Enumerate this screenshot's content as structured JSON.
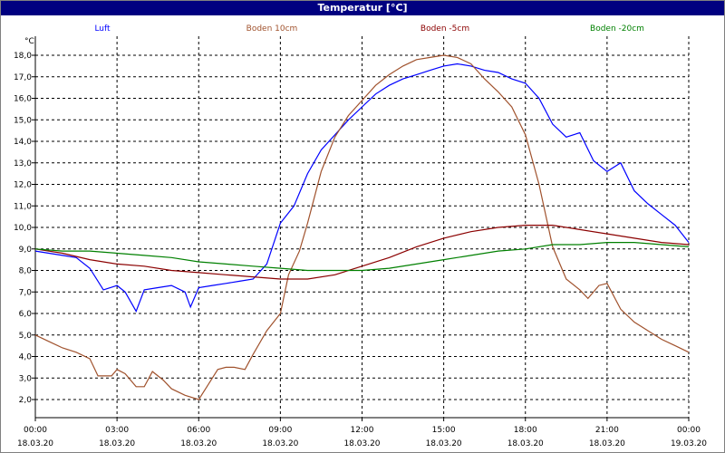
{
  "window": {
    "title": "Temperatur [°C]"
  },
  "chart_data": {
    "type": "line",
    "title": "Temperatur [°C]",
    "ylabel": "°C",
    "xlabel": "",
    "ylim": [
      1.0,
      18.5
    ],
    "xlim": [
      0,
      24
    ],
    "grid": true,
    "legend_position": "top",
    "yticks": [
      2,
      3,
      4,
      5,
      6,
      7,
      8,
      9,
      10,
      11,
      12,
      13,
      14,
      15,
      16,
      17,
      18
    ],
    "ytick_labels": [
      "2,0",
      "3,0",
      "4,0",
      "5,0",
      "6,0",
      "7,0",
      "8,0",
      "9,0",
      "10,0",
      "11,0",
      "12,0",
      "13,0",
      "14,0",
      "15,0",
      "16,0",
      "17,0",
      "18,0"
    ],
    "xticks": [
      0,
      3,
      6,
      9,
      12,
      15,
      18,
      21,
      24
    ],
    "xtick_times": [
      "00:00",
      "03:00",
      "06:00",
      "09:00",
      "12:00",
      "15:00",
      "18:00",
      "21:00",
      "00:00"
    ],
    "xtick_dates": [
      "18.03.20",
      "18.03.20",
      "18.03.20",
      "18.03.20",
      "18.03.20",
      "18.03.20",
      "18.03.20",
      "18.03.20",
      "19.03.20"
    ],
    "series": [
      {
        "name": "Luft",
        "color": "#0000ff",
        "x": [
          0,
          0.5,
          1,
          1.5,
          2,
          2.5,
          3,
          3.3,
          3.7,
          4,
          4.5,
          5,
          5.5,
          5.7,
          6,
          6.5,
          7,
          7.5,
          8,
          8.5,
          9,
          9.5,
          10,
          10.5,
          11,
          11.5,
          12,
          12.5,
          13,
          13.5,
          14,
          14.5,
          15,
          15.5,
          16,
          16.5,
          17,
          17.5,
          18,
          18.5,
          19,
          19.5,
          20,
          20.5,
          21,
          21.5,
          22,
          22.5,
          23,
          23.5,
          24
        ],
        "y": [
          8.9,
          8.8,
          8.7,
          8.6,
          8.1,
          7.1,
          7.3,
          7.0,
          6.1,
          7.1,
          7.2,
          7.3,
          7.0,
          6.3,
          7.2,
          7.3,
          7.4,
          7.5,
          7.6,
          8.3,
          10.2,
          11.0,
          12.5,
          13.6,
          14.3,
          15.0,
          15.6,
          16.2,
          16.6,
          16.9,
          17.1,
          17.3,
          17.5,
          17.6,
          17.5,
          17.3,
          17.2,
          16.9,
          16.7,
          16.0,
          14.8,
          14.2,
          14.4,
          13.1,
          12.6,
          13.0,
          11.7,
          11.1,
          10.6,
          10.1,
          9.3
        ]
      },
      {
        "name": "Boden 10cm",
        "color": "#a0522d",
        "x": [
          0,
          0.5,
          1,
          1.5,
          2,
          2.3,
          2.8,
          3,
          3.3,
          3.7,
          4,
          4.3,
          4.7,
          5,
          5.5,
          6,
          6.3,
          6.7,
          7,
          7.3,
          7.7,
          8,
          8.5,
          9,
          9.3,
          9.7,
          10,
          10.5,
          11,
          11.5,
          12,
          12.5,
          13,
          13.5,
          14,
          14.5,
          15,
          15.5,
          16,
          16.5,
          17,
          17.5,
          18,
          18.5,
          19,
          19.5,
          20,
          20.3,
          20.7,
          21,
          21.5,
          22,
          22.5,
          23,
          23.5,
          24
        ],
        "y": [
          5.0,
          4.7,
          4.4,
          4.2,
          3.9,
          3.1,
          3.1,
          3.4,
          3.2,
          2.6,
          2.6,
          3.3,
          2.9,
          2.5,
          2.2,
          2.0,
          2.6,
          3.4,
          3.5,
          3.5,
          3.4,
          4.1,
          5.2,
          6.0,
          7.8,
          8.9,
          10.2,
          12.6,
          14.2,
          15.2,
          15.9,
          16.6,
          17.1,
          17.5,
          17.8,
          17.9,
          18.0,
          17.9,
          17.6,
          16.9,
          16.3,
          15.6,
          14.3,
          12.0,
          9.1,
          7.6,
          7.1,
          6.7,
          7.3,
          7.4,
          6.2,
          5.6,
          5.2,
          4.8,
          4.5,
          4.2
        ]
      },
      {
        "name": "Boden -5cm",
        "color": "#8b0000",
        "x": [
          0,
          1,
          2,
          3,
          4,
          5,
          6,
          7,
          8,
          9,
          10,
          11,
          12,
          13,
          14,
          15,
          16,
          17,
          18,
          19,
          20,
          21,
          22,
          23,
          24
        ],
        "y": [
          9.0,
          8.8,
          8.5,
          8.3,
          8.2,
          8.0,
          7.9,
          7.8,
          7.7,
          7.6,
          7.6,
          7.8,
          8.2,
          8.6,
          9.1,
          9.5,
          9.8,
          10.0,
          10.1,
          10.1,
          9.9,
          9.7,
          9.5,
          9.3,
          9.2
        ]
      },
      {
        "name": "Boden -20cm",
        "color": "#008000",
        "x": [
          0,
          1,
          2,
          3,
          4,
          5,
          6,
          7,
          8,
          9,
          10,
          11,
          12,
          13,
          14,
          15,
          16,
          17,
          18,
          19,
          20,
          21,
          22,
          23,
          24
        ],
        "y": [
          9.0,
          8.9,
          8.9,
          8.8,
          8.7,
          8.6,
          8.4,
          8.3,
          8.2,
          8.1,
          8.0,
          8.0,
          8.0,
          8.1,
          8.3,
          8.5,
          8.7,
          8.9,
          9.0,
          9.2,
          9.2,
          9.3,
          9.3,
          9.2,
          9.1
        ]
      }
    ]
  }
}
